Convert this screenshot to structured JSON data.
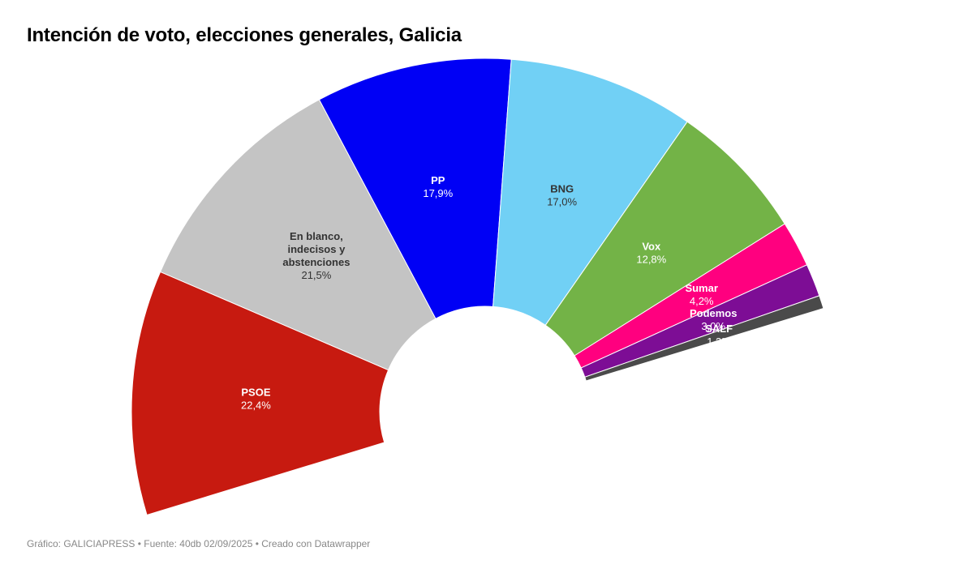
{
  "title": "Intención de voto, elecciones generales, Galicia",
  "footer": "Gráfico: GALICIAPRESS • Fuente: 40db 02/09/2025 • Creado con Datawrapper",
  "chart_data": {
    "type": "pie",
    "subtype": "semicircle-donut (parliament)",
    "title": "Intención de voto, elecciones generales, Galicia",
    "categories": [
      "PSOE",
      "En blanco, indecisos y abstenciones",
      "PP",
      "BNG",
      "Vox",
      "Sumar",
      "Podemos",
      "SALF"
    ],
    "values": [
      22.4,
      21.5,
      17.9,
      17.0,
      12.8,
      4.2,
      3.0,
      1.2
    ],
    "value_labels": [
      "22,4%",
      "21,5%",
      "17,9%",
      "17,0%",
      "12,8%",
      "4,2%",
      "3,0%",
      "1,2%"
    ],
    "colors": [
      "#c71a10",
      "#c4c4c4",
      "#0000f5",
      "#71d0f5",
      "#73b347",
      "#ff007f",
      "#7d0d95",
      "#4a4a4a"
    ],
    "label_colors": [
      "#ffffff",
      "#333333",
      "#ffffff",
      "#333333",
      "#ffffff",
      "#ffffff",
      "#ffffff",
      "#ffffff"
    ],
    "source": "40db 02/09/2025",
    "credit": "GALICIAPRESS"
  }
}
